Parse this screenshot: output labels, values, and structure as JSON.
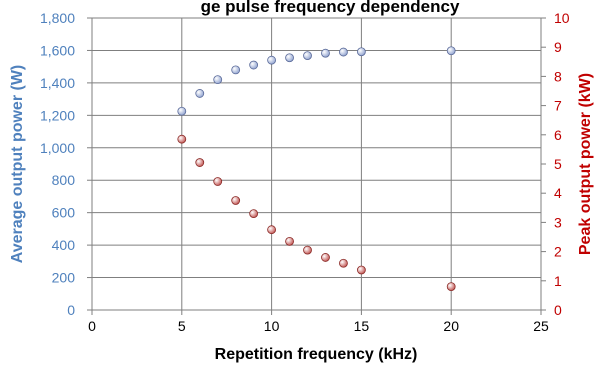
{
  "chart_data": {
    "type": "scatter",
    "title": "ge pulse frequency dependency",
    "xlabel": "Repetition frequency (kHz)",
    "xlim": [
      0,
      25
    ],
    "xticks": [
      "0",
      "5",
      "10",
      "15",
      "20",
      "25"
    ],
    "grid": true,
    "y_left": {
      "label": "Average output power (W)",
      "lim": [
        0,
        1800
      ],
      "ticks": [
        "0",
        "200",
        "400",
        "600",
        "800",
        "1,000",
        "1,200",
        "1,400",
        "1,600",
        "1,800"
      ],
      "color": "#4F81BD"
    },
    "y_right": {
      "label": "Peak output power (kW)",
      "lim": [
        0,
        10
      ],
      "ticks": [
        "0",
        "1",
        "2",
        "3",
        "4",
        "5",
        "6",
        "7",
        "8",
        "9",
        "10"
      ],
      "color": "#C00000"
    },
    "series": [
      {
        "axis": "left",
        "color": "#8EA1CF",
        "x": [
          5,
          6,
          7,
          8,
          9,
          10,
          11,
          12,
          13,
          14,
          15,
          20
        ],
        "y": [
          1225,
          1335,
          1420,
          1480,
          1510,
          1540,
          1555,
          1568,
          1583,
          1590,
          1592,
          1598
        ]
      },
      {
        "axis": "right",
        "color": "#C0504D",
        "x": [
          5,
          6,
          7,
          8,
          9,
          10,
          11,
          12,
          13,
          14,
          15,
          20
        ],
        "y": [
          5.85,
          5.05,
          4.4,
          3.75,
          3.3,
          2.75,
          2.35,
          2.05,
          1.8,
          1.6,
          1.37,
          0.8
        ]
      }
    ]
  }
}
